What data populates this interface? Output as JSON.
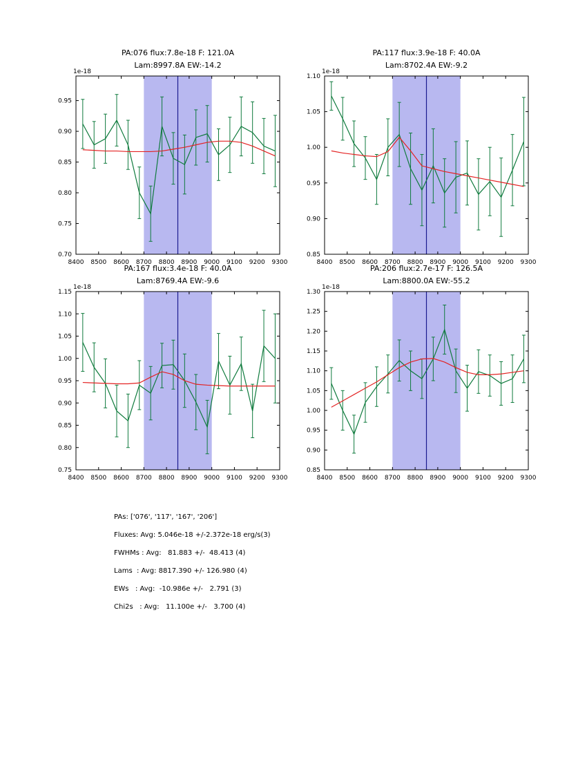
{
  "figure": {
    "band_color": "#b8b8f0",
    "vline_color": "#1a1a8f",
    "data_color": "#0e7a3c",
    "fit_color": "#e32222",
    "frame_color": "#000000",
    "background": "#ffffff"
  },
  "summary": {
    "lines": [
      "PAs: ['076', '117', '167', '206']",
      "Fluxes: Avg: 5.046e-18 +/-2.372e-18 erg/s(3)",
      "FWHMs : Avg:   81.883 +/-  48.413 (4)",
      "Lams  : Avg: 8817.390 +/- 126.980 (4)",
      "EWs   : Avg:  -10.986e +/-   2.791 (3)",
      "Chi2s   : Avg:   11.100e +/-   3.700 (4)"
    ]
  },
  "chart_data": [
    {
      "type": "line",
      "title_line1": "PA:076 flux:7.8e-18 F: 121.0A",
      "title_line2": "Lam:8997.8A EW:-14.2",
      "offset_label": "1e-18",
      "xlim": [
        8400,
        9300
      ],
      "ylim": [
        0.7,
        0.99
      ],
      "xticks": [
        8400,
        8500,
        8600,
        8700,
        8800,
        8900,
        9000,
        9100,
        9200,
        9300
      ],
      "yticks": [
        0.7,
        0.75,
        0.8,
        0.85,
        0.9,
        0.95
      ],
      "band": [
        8700,
        9000
      ],
      "vline": 8850,
      "x": [
        8430,
        8480,
        8530,
        8580,
        8630,
        8680,
        8730,
        8780,
        8830,
        8880,
        8930,
        8980,
        9030,
        9080,
        9130,
        9180,
        9230,
        9280
      ],
      "series": [
        {
          "name": "spectrum",
          "values": [
            0.912,
            0.878,
            0.888,
            0.918,
            0.878,
            0.8,
            0.766,
            0.908,
            0.856,
            0.846,
            0.89,
            0.896,
            0.862,
            0.878,
            0.908,
            0.898,
            0.876,
            0.868
          ],
          "errors": [
            0.04,
            0.038,
            0.04,
            0.042,
            0.04,
            0.042,
            0.045,
            0.048,
            0.042,
            0.048,
            0.045,
            0.046,
            0.042,
            0.045,
            0.048,
            0.05,
            0.045,
            0.058
          ]
        },
        {
          "name": "fit",
          "values": [
            0.87,
            0.869,
            0.868,
            0.868,
            0.867,
            0.867,
            0.867,
            0.868,
            0.871,
            0.874,
            0.878,
            0.882,
            0.884,
            0.884,
            0.882,
            0.876,
            0.868,
            0.86
          ]
        }
      ]
    },
    {
      "type": "line",
      "title_line1": "PA:117 flux:3.9e-18 F: 40.0A",
      "title_line2": "Lam:8702.4A EW:-9.2",
      "offset_label": "1e-18",
      "xlim": [
        8400,
        9300
      ],
      "ylim": [
        0.85,
        1.1
      ],
      "xticks": [
        8400,
        8500,
        8600,
        8700,
        8800,
        8900,
        9000,
        9100,
        9200,
        9300
      ],
      "yticks": [
        0.85,
        0.9,
        0.95,
        1.0,
        1.05,
        1.1
      ],
      "band": [
        8700,
        9000
      ],
      "vline": 8850,
      "x": [
        8430,
        8480,
        8530,
        8580,
        8630,
        8680,
        8730,
        8780,
        8830,
        8880,
        8930,
        8980,
        9030,
        9080,
        9130,
        9180,
        9230,
        9280
      ],
      "series": [
        {
          "name": "spectrum",
          "values": [
            1.072,
            1.04,
            1.005,
            0.985,
            0.955,
            1.0,
            1.018,
            0.97,
            0.94,
            0.974,
            0.936,
            0.958,
            0.964,
            0.934,
            0.952,
            0.93,
            0.968,
            1.008
          ],
          "errors": [
            0.02,
            0.03,
            0.032,
            0.03,
            0.035,
            0.04,
            0.045,
            0.05,
            0.05,
            0.052,
            0.048,
            0.05,
            0.045,
            0.05,
            0.048,
            0.055,
            0.05,
            0.062
          ]
        },
        {
          "name": "fit",
          "values": [
            0.995,
            0.992,
            0.99,
            0.988,
            0.987,
            0.994,
            1.014,
            0.995,
            0.974,
            0.97,
            0.966,
            0.963,
            0.96,
            0.957,
            0.954,
            0.951,
            0.948,
            0.945
          ]
        }
      ]
    },
    {
      "type": "line",
      "title_line1": "PA:167 flux:3.4e-18 F: 40.0A",
      "title_line2": "Lam:8769.4A EW:-9.6",
      "offset_label": "1e-18",
      "xlim": [
        8400,
        9300
      ],
      "ylim": [
        0.75,
        1.15
      ],
      "xticks": [
        8400,
        8500,
        8600,
        8700,
        8800,
        8900,
        9000,
        9100,
        9200,
        9300
      ],
      "yticks": [
        0.75,
        0.8,
        0.85,
        0.9,
        0.95,
        1.0,
        1.05,
        1.1,
        1.15
      ],
      "band": [
        8700,
        9000
      ],
      "vline": 8850,
      "x": [
        8430,
        8480,
        8530,
        8580,
        8630,
        8680,
        8730,
        8780,
        8830,
        8880,
        8930,
        8980,
        9030,
        9080,
        9130,
        9180,
        9230,
        9280
      ],
      "series": [
        {
          "name": "spectrum",
          "values": [
            1.036,
            0.98,
            0.944,
            0.882,
            0.86,
            0.94,
            0.922,
            0.984,
            0.986,
            0.95,
            0.902,
            0.846,
            0.994,
            0.94,
            0.988,
            0.882,
            1.028,
            1.0
          ],
          "errors": [
            0.065,
            0.055,
            0.055,
            0.058,
            0.06,
            0.055,
            0.06,
            0.05,
            0.055,
            0.06,
            0.062,
            0.06,
            0.062,
            0.065,
            0.06,
            0.06,
            0.08,
            0.1
          ]
        },
        {
          "name": "fit",
          "values": [
            0.946,
            0.945,
            0.944,
            0.943,
            0.943,
            0.945,
            0.958,
            0.97,
            0.964,
            0.95,
            0.942,
            0.94,
            0.939,
            0.938,
            0.938,
            0.938,
            0.938,
            0.938
          ]
        }
      ]
    },
    {
      "type": "line",
      "title_line1": "PA:206 flux:2.7e-17 F: 126.5A",
      "title_line2": "Lam:8800.0A EW:-55.2",
      "offset_label": "1e-18",
      "xlim": [
        8400,
        9300
      ],
      "ylim": [
        0.85,
        1.3
      ],
      "xticks": [
        8400,
        8500,
        8600,
        8700,
        8800,
        8900,
        9000,
        9100,
        9200,
        9300
      ],
      "yticks": [
        0.85,
        0.9,
        0.95,
        1.0,
        1.05,
        1.1,
        1.15,
        1.2,
        1.25,
        1.3
      ],
      "band": [
        8700,
        9000
      ],
      "vline": 8850,
      "x": [
        8430,
        8480,
        8530,
        8580,
        8630,
        8680,
        8730,
        8780,
        8830,
        8880,
        8930,
        8980,
        9030,
        9080,
        9130,
        9180,
        9230,
        9280
      ],
      "series": [
        {
          "name": "spectrum",
          "values": [
            1.068,
            1.0,
            0.94,
            1.02,
            1.06,
            1.092,
            1.126,
            1.1,
            1.08,
            1.13,
            1.204,
            1.1,
            1.056,
            1.098,
            1.088,
            1.068,
            1.08,
            1.13
          ],
          "errors": [
            0.04,
            0.05,
            0.048,
            0.05,
            0.05,
            0.048,
            0.052,
            0.05,
            0.05,
            0.055,
            0.062,
            0.055,
            0.058,
            0.055,
            0.052,
            0.055,
            0.06,
            0.06
          ]
        },
        {
          "name": "fit",
          "values": [
            1.008,
            1.024,
            1.04,
            1.056,
            1.072,
            1.09,
            1.108,
            1.122,
            1.13,
            1.131,
            1.122,
            1.108,
            1.096,
            1.09,
            1.09,
            1.092,
            1.096,
            1.1
          ]
        }
      ]
    }
  ]
}
